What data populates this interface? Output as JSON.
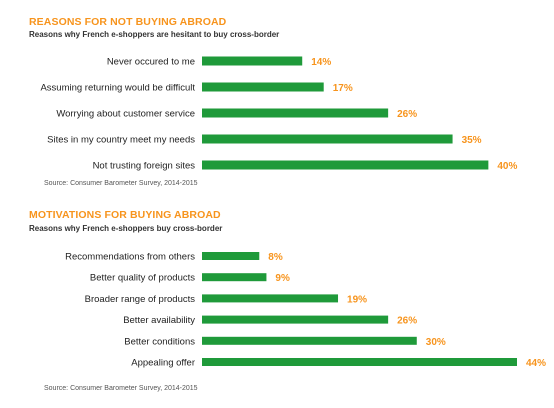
{
  "colors": {
    "bar": "#1f9a3a",
    "accent": "#f7941d",
    "text": "#222222"
  },
  "chart_data": [
    {
      "type": "bar",
      "orientation": "horizontal",
      "title": "REASONS FOR NOT BUYING ABROAD",
      "subtitle": "Reasons why French e-shoppers are hesitant to buy cross-border",
      "source": "Source: Consumer Barometer Survey, 2014-2015",
      "categories": [
        "Never occured to me",
        "Assuming returning would be difficult",
        "Worrying about customer service",
        "Sites in my country meet my needs",
        "Not trusting foreign sites"
      ],
      "values": [
        14,
        17,
        26,
        35,
        40
      ],
      "value_labels": [
        "14%",
        "17%",
        "26%",
        "35%",
        "40%"
      ],
      "unit": "%",
      "xlim": [
        0,
        44
      ],
      "grid": false,
      "legend": "none"
    },
    {
      "type": "bar",
      "orientation": "horizontal",
      "title": "MOTIVATIONS FOR BUYING ABROAD",
      "subtitle": "Reasons why French e-shoppers buy cross-border",
      "source": "Source: Consumer Barometer Survey, 2014-2015",
      "categories": [
        "Recommendations from others",
        "Better quality of products",
        "Broader range of products",
        "Better availability",
        "Better conditions",
        "Appealing offer"
      ],
      "values": [
        8,
        9,
        19,
        26,
        30,
        44
      ],
      "value_labels": [
        "8%",
        "9%",
        "19%",
        "26%",
        "30%",
        "44%"
      ],
      "unit": "%",
      "xlim": [
        0,
        44
      ],
      "grid": false,
      "legend": "none"
    }
  ]
}
